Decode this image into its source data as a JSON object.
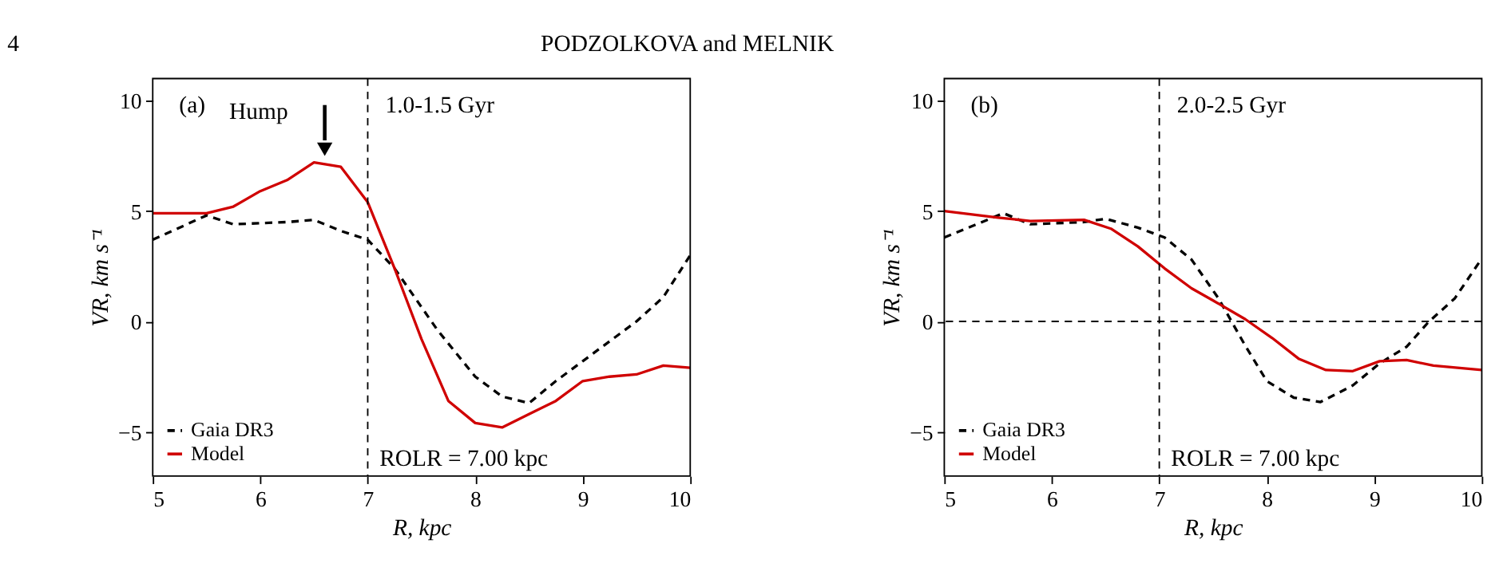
{
  "chart_data": [
    {
      "type": "line",
      "xlabel": "R, kpc",
      "ylabel": "VR, km s⁻¹",
      "xlim": [
        5,
        10
      ],
      "xticks": [
        5,
        6,
        7,
        8,
        9,
        10
      ],
      "ylim": [
        -7,
        11
      ],
      "yticks": [
        -5,
        0,
        5,
        10
      ],
      "grid": false,
      "legend": "bottom left",
      "series": [
        {
          "name": "Gaia DR3",
          "color": "#000000",
          "line_style": "dashed",
          "x": [
            5.0,
            5.5,
            5.75,
            6.25,
            6.5,
            6.75,
            7.0,
            7.25,
            7.65,
            8.0,
            8.25,
            8.5,
            8.75,
            9.0,
            9.25,
            9.5,
            9.75,
            10.0
          ],
          "values": [
            3.7,
            4.8,
            4.4,
            4.5,
            4.6,
            4.1,
            3.7,
            2.4,
            -0.4,
            -2.5,
            -3.4,
            -3.7,
            -2.7,
            -1.8,
            -0.9,
            0.0,
            1.1,
            3.0
          ]
        },
        {
          "name": "Model",
          "color": "#d00000",
          "line_style": "solid",
          "x": [
            5.0,
            5.5,
            5.75,
            6.0,
            6.25,
            6.5,
            6.75,
            7.0,
            7.25,
            7.5,
            7.75,
            8.0,
            8.25,
            8.5,
            8.75,
            9.0,
            9.25,
            9.5,
            9.75,
            10.0
          ],
          "values": [
            4.9,
            4.9,
            5.2,
            5.9,
            6.4,
            7.2,
            7.0,
            5.4,
            2.4,
            -0.8,
            -3.6,
            -4.6,
            -4.8,
            -4.2,
            -3.6,
            -2.7,
            -2.5,
            -2.4,
            -2.0,
            -2.1
          ]
        }
      ],
      "ref_lines": [
        {
          "axis": "x",
          "value": 7,
          "line_style": "dashed"
        }
      ],
      "annotations": [
        "(a)",
        "1.0-1.5 Gyr",
        "ROLR = 7.00 kpc",
        "4",
        "PODZOLKOVA and MELNIK",
        {
          "text": "Hump",
          "x": 6.6,
          "y": 7.2
        }
      ]
    },
    {
      "type": "line",
      "xlabel": "R, kpc",
      "ylabel": "VR, km s⁻¹",
      "xlim": [
        5,
        10
      ],
      "xticks": [
        5,
        6,
        7,
        8,
        9,
        10
      ],
      "ylim": [
        -7,
        11
      ],
      "yticks": [
        -5,
        0,
        5,
        10
      ],
      "grid": false,
      "legend": "bottom left",
      "series": [
        {
          "name": "Gaia DR3",
          "color": "#000000",
          "line_style": "dashed",
          "x": [
            5.0,
            5.55,
            5.8,
            6.3,
            6.5,
            6.8,
            7.05,
            7.3,
            7.55,
            7.8,
            8.0,
            8.25,
            8.5,
            8.8,
            9.05,
            9.3,
            9.5,
            9.75,
            10.0
          ],
          "values": [
            3.8,
            4.9,
            4.4,
            4.5,
            4.65,
            4.25,
            3.8,
            2.8,
            1.05,
            -1.1,
            -2.7,
            -3.45,
            -3.65,
            -2.9,
            -1.9,
            -1.15,
            -0.05,
            1.05,
            2.85
          ]
        },
        {
          "name": "Model",
          "color": "#d00000",
          "line_style": "solid",
          "x": [
            5.0,
            5.5,
            5.8,
            6.3,
            6.55,
            6.8,
            7.05,
            7.3,
            7.5,
            7.8,
            8.05,
            8.3,
            8.55,
            8.8,
            9.05,
            9.3,
            9.55,
            10.0
          ],
          "values": [
            5.0,
            4.7,
            4.55,
            4.6,
            4.2,
            3.4,
            2.4,
            1.5,
            0.95,
            0.1,
            -0.75,
            -1.7,
            -2.2,
            -2.25,
            -1.8,
            -1.75,
            -2.0,
            -2.2
          ]
        }
      ],
      "ref_lines": [
        {
          "axis": "x",
          "value": 7,
          "line_style": "dashed"
        },
        {
          "axis": "y",
          "value": 0,
          "line_style": "dashed"
        }
      ],
      "annotations": [
        "(b)",
        "2.0-2.5 Gyr",
        "ROLR = 7.00 kpc"
      ]
    }
  ]
}
